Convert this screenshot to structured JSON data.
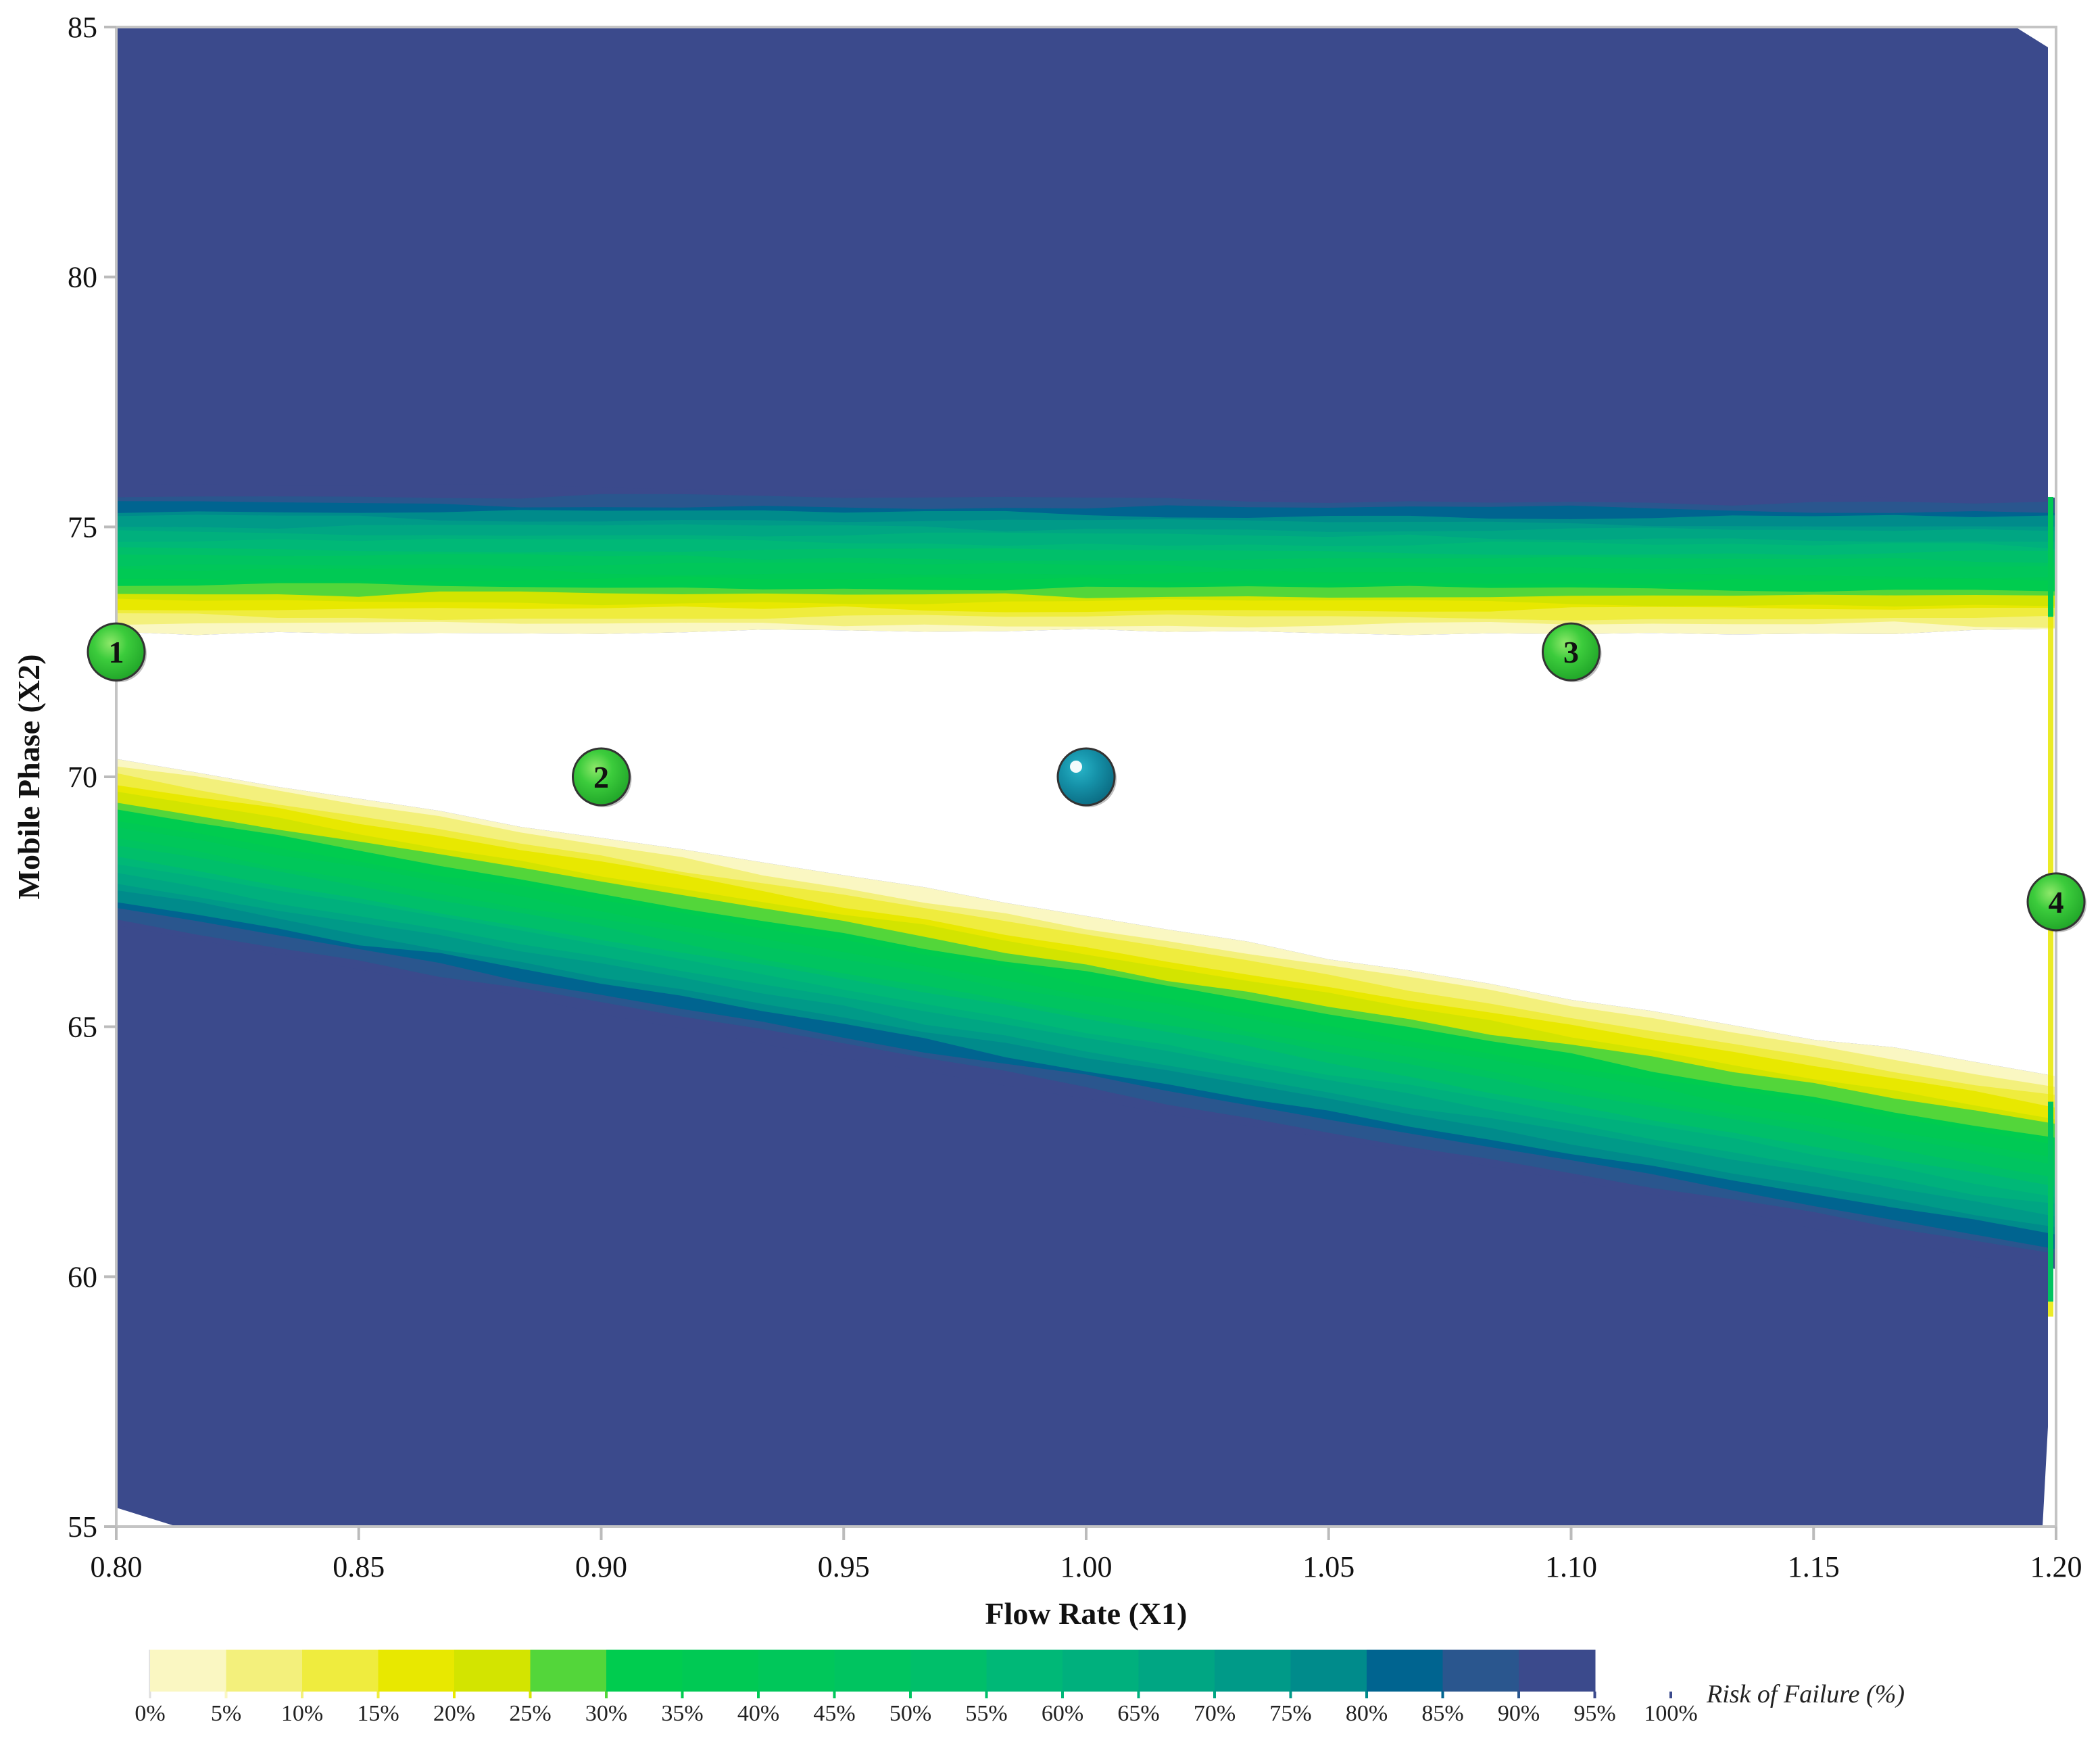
{
  "chart_data": {
    "type": "contour",
    "title": "",
    "xlabel": "Flow Rate (X1)",
    "ylabel": "Mobile Phase (X2)",
    "xlim": [
      0.8,
      1.2
    ],
    "ylim": [
      55,
      85
    ],
    "x_ticks": [
      "0.80",
      "0.85",
      "0.90",
      "0.95",
      "1.00",
      "1.05",
      "1.10",
      "1.15",
      "1.20"
    ],
    "y_ticks": [
      "55",
      "60",
      "65",
      "70",
      "75",
      "80",
      "85"
    ],
    "grid": false,
    "colorbar": {
      "title": "Risk of Failure (%)",
      "position": "bottom",
      "levels": [
        "0%",
        "5%",
        "10%",
        "15%",
        "20%",
        "25%",
        "30%",
        "35%",
        "40%",
        "45%",
        "50%",
        "55%",
        "60%",
        "65%",
        "70%",
        "75%",
        "80%",
        "85%",
        "90%",
        "95%",
        "100%"
      ],
      "colors": [
        "#ffffff",
        "#faf7c2",
        "#f3f07c",
        "#efec3e",
        "#e8e800",
        "#d3e400",
        "#53d63a",
        "#00cc4f",
        "#00c954",
        "#00c75a",
        "#00c460",
        "#00bf6a",
        "#00b877",
        "#00b07d",
        "#00a683",
        "#009a88",
        "#008b8b",
        "#006490",
        "#2a568e",
        "#3b4a8c"
      ]
    },
    "regions": {
      "design_space_color": "#ffffff",
      "high_risk_color": "#3b4a8c",
      "upper_band": {
        "x": [
          0.8,
          1.2
        ],
        "y_low_edge": [
          72.9,
          72.9
        ],
        "y_high_edge": [
          75.8,
          75.6
        ]
      },
      "lower_band": {
        "x": [
          0.8,
          1.2
        ],
        "y_high_edge": [
          70.4,
          64.0
        ],
        "y_low_edge": [
          67.0,
          60.2
        ]
      }
    },
    "points": [
      {
        "label": "1",
        "x": 0.8,
        "y": 72.5,
        "color": "#3ccc3c"
      },
      {
        "label": "2",
        "x": 0.9,
        "y": 70.0,
        "color": "#3ccc3c"
      },
      {
        "label": "3",
        "x": 1.1,
        "y": 72.5,
        "color": "#3ccc3c"
      },
      {
        "label": "4",
        "x": 1.2,
        "y": 67.5,
        "color": "#3ccc3c"
      },
      {
        "label": "",
        "x": 1.0,
        "y": 70.0,
        "color": "#1591a8",
        "role": "center-point"
      }
    ]
  }
}
